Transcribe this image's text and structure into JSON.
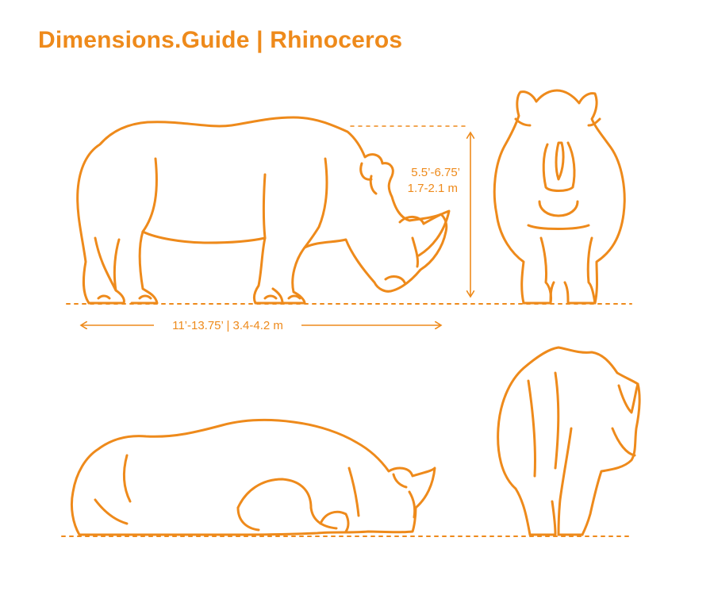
{
  "header": {
    "title": "Dimensions.Guide | Rhinoceros"
  },
  "colors": {
    "accent": "#ee8a1b"
  },
  "dimensions": {
    "height_imperial": "5.5’-6.75’",
    "height_metric": "1.7-2.1 m",
    "length_label": "11’-13.75’ | 3.4-4.2 m"
  }
}
